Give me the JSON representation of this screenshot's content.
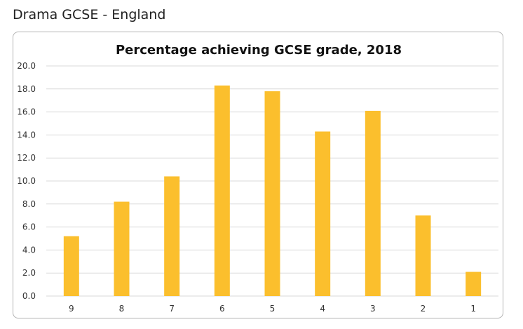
{
  "page": {
    "heading": "Drama GCSE - England"
  },
  "chart_data": {
    "type": "bar",
    "title": "Percentage achieving GCSE grade, 2018",
    "xlabel": "",
    "ylabel": "",
    "categories": [
      "9",
      "8",
      "7",
      "6",
      "5",
      "4",
      "3",
      "2",
      "1"
    ],
    "values": [
      5.2,
      8.2,
      10.4,
      18.3,
      17.8,
      14.3,
      16.1,
      7.0,
      2.1
    ],
    "ylim": [
      0,
      20
    ],
    "yticks": [
      "0.0",
      "2.0",
      "4.0",
      "6.0",
      "8.0",
      "10.0",
      "12.0",
      "14.0",
      "16.0",
      "18.0",
      "20.0"
    ],
    "grid": true,
    "legend": "none",
    "colors": {
      "bar": "#FBBF2D",
      "grid": "#d9d9d9",
      "frame": "#b3b3b3"
    }
  }
}
